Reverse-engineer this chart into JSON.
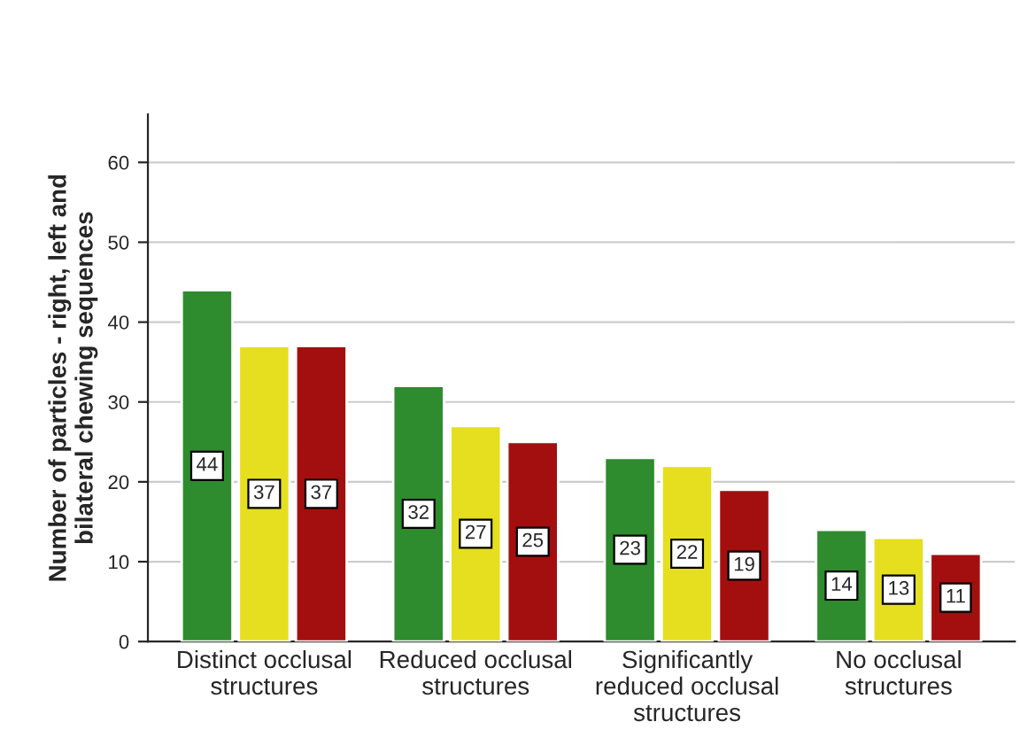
{
  "chart_data": {
    "type": "bar",
    "ylabel": "Number of particles - right, left and\nbilateral chewing sequences",
    "categories": [
      "Distinct occlusal\nstructures",
      "Reduced occlusal\nstructures",
      "Significantly\nreduced occlusal\nstructures",
      "No occlusal\nstructures"
    ],
    "series": [
      {
        "color": "#2e8b2e",
        "values": [
          44,
          32,
          23,
          14
        ]
      },
      {
        "color": "#e5df1f",
        "values": [
          37,
          27,
          22,
          13
        ]
      },
      {
        "color": "#a30f0f",
        "values": [
          37,
          25,
          19,
          11
        ]
      }
    ],
    "ylim": [
      0,
      66
    ],
    "yticks": [
      0,
      10,
      20,
      30,
      40,
      50,
      60
    ],
    "grid": "y",
    "data_labels": true
  }
}
